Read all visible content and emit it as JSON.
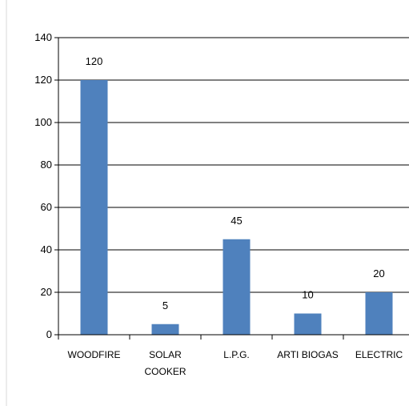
{
  "chart_data": {
    "type": "bar",
    "categories": [
      [
        "WOODFIRE"
      ],
      [
        "SOLAR",
        "COOKER"
      ],
      [
        "L.P.G."
      ],
      [
        "ARTI BIOGAS"
      ],
      [
        "ELECTRIC"
      ]
    ],
    "values": [
      120,
      5,
      45,
      10,
      20
    ],
    "data_labels": [
      "120",
      "5",
      "45",
      "10",
      "20"
    ],
    "ylim": [
      0,
      140
    ],
    "yticks": [
      0,
      20,
      40,
      60,
      80,
      100,
      120,
      140
    ],
    "bar_color": "#4f81bd",
    "grid": true,
    "title": "",
    "xlabel": "",
    "ylabel": ""
  }
}
